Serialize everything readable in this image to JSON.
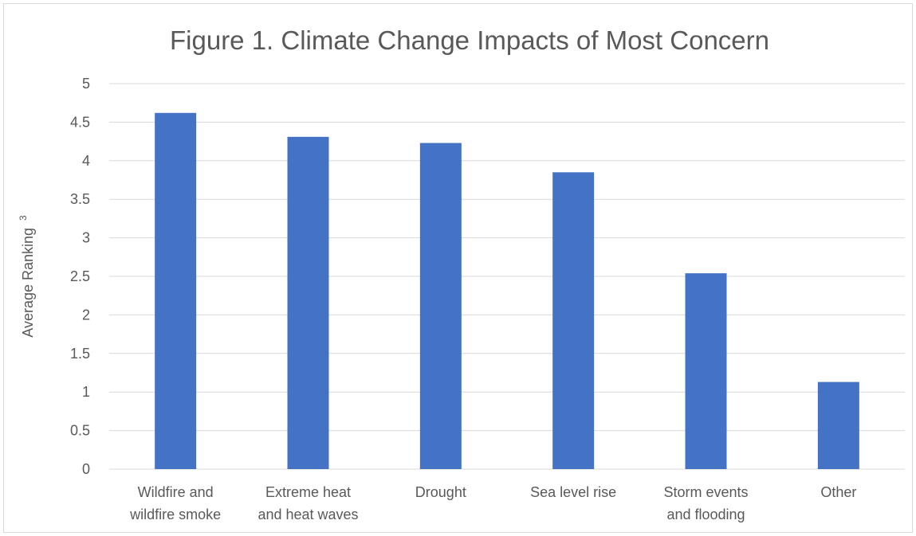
{
  "chart_data": {
    "type": "bar",
    "title": "Figure 1. Climate Change Impacts of Most Concern",
    "xlabel": "",
    "ylabel": "Average Ranking",
    "ylabel_superscript": "3",
    "ylim": [
      0,
      5
    ],
    "yticks": [
      "0",
      "0.5",
      "1",
      "1.5",
      "2",
      "2.5",
      "3",
      "3.5",
      "4",
      "4.5",
      "5"
    ],
    "grid": true,
    "legend": "none",
    "categories": [
      [
        "Wildfire and",
        "wildfire smoke"
      ],
      [
        "Extreme heat",
        "and heat waves"
      ],
      [
        "Drought"
      ],
      [
        "Sea level rise"
      ],
      [
        "Storm events",
        "and flooding"
      ],
      [
        "Other"
      ]
    ],
    "values": [
      4.62,
      4.31,
      4.23,
      3.85,
      2.54,
      1.13
    ],
    "colors": {
      "bar": "#4472C4",
      "grid": "#d9d9d9",
      "text": "#595959"
    }
  }
}
